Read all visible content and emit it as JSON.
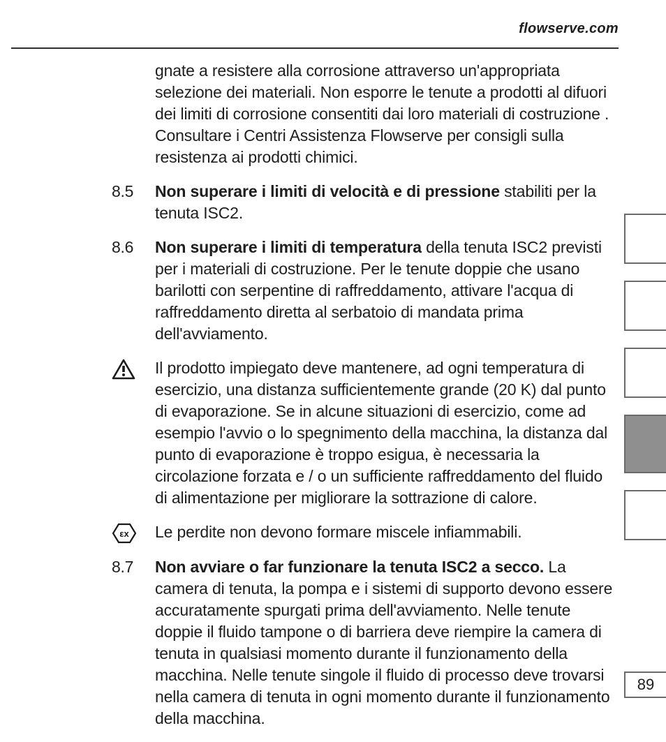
{
  "header": {
    "brand": "flowserve.com"
  },
  "intro": {
    "text": "gnate a resistere alla corrosione attraverso un'appropriata selezione dei materiali. Non esporre le tenute a prodotti al difuori dei limiti di corrosione consentiti dai loro materiali di costruzione . Consultare i Centri Assistenza Flowserve per consigli sulla resistenza ai prodotti chimici."
  },
  "items": {
    "s85": {
      "num": "8.5",
      "bold": "Non superare i limiti di velocità e di pressione",
      "rest": " stabiliti per la tenuta ISC2."
    },
    "s86": {
      "num": "8.6",
      "bold": "Non superare i limiti di temperatura",
      "rest": " della tenuta ISC2 previsti per i materiali di costruzione. Per le tenute doppie che usano barilotti con serpentine di raffreddamento, attivare l'acqua di raffreddamento diretta al serbatoio di mandata prima dell'avviamento."
    },
    "warn": {
      "text": "Il prodotto impiegato deve mantenere, ad ogni temperatura di esercizio, una distanza sufficientemente grande (20 K) dal punto di evaporazione. Se in alcune situazioni di esercizio, come ad esempio l'avvio o lo spegnimento della macchina, la distanza dal punto di evaporazione è troppo esigua, è necessaria la circolazione forzata e / o un sufficiente raffreddamento del fluido di alimentazione per migliorare la sottrazione di calore."
    },
    "ex": {
      "text": "Le perdite non devono formare miscele infiammabili."
    },
    "s87": {
      "num": "8.7",
      "bold": "Non avviare o far funzionare la tenuta ISC2 a secco.",
      "rest": " La camera di tenuta, la pompa e i sistemi di supporto devono essere accuratamente spurgati prima dell'avviamento. Nelle tenute doppie il fluido tampone o di barriera deve riempire la camera di tenuta in qualsiasi momento durante il funzionamento della macchina. Nelle tenute singole il fluido di processo deve trovarsi nella camera di tenuta in ogni momento durante il funzionamento della macchina."
    }
  },
  "sideTabs": {
    "heights": [
      68,
      68,
      68,
      80,
      68
    ],
    "activeIndex": 3,
    "border_color": "#6b6b6b",
    "active_bg": "#8f8f8f"
  },
  "pageNumber": "89",
  "icons": {
    "warning_stroke": "#1a1a1a",
    "ex_stroke": "#1a1a1a"
  },
  "colors": {
    "text": "#1e1e1e",
    "rule": "#303030",
    "background": "#ffffff"
  },
  "typography": {
    "body_fontsize": 23,
    "body_lineheight": 31,
    "brand_fontsize": 20
  }
}
